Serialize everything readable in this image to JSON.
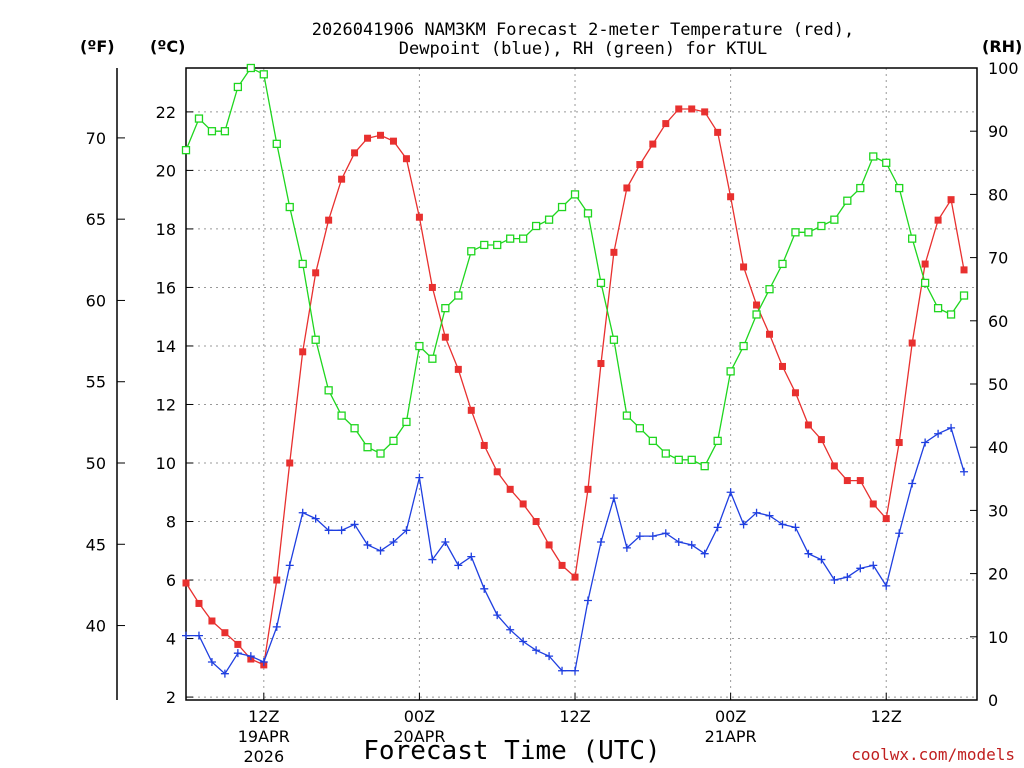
{
  "chart_data": {
    "type": "line",
    "title_line1": "2026041906 NAM3KM Forecast 2-meter Temperature (red),",
    "title_line2": "Dewpoint (blue), RH (green) for KTUL",
    "xlabel": "Forecast Time (UTC)",
    "credit": "coolwx.com/models",
    "units": {
      "fahrenheit": "(ºF)",
      "celsius": "(ºC)",
      "rh": "(RH)"
    },
    "x_range_hours": [
      0,
      61
    ],
    "ylim_c": [
      1.9,
      23.5
    ],
    "ylim_rh": [
      0,
      100
    ],
    "f_ticks": [
      "40",
      "45",
      "50",
      "55",
      "60",
      "65",
      "70"
    ],
    "c_ticks": [
      "2",
      "4",
      "6",
      "8",
      "10",
      "12",
      "14",
      "16",
      "18",
      "20",
      "22"
    ],
    "rh_ticks": [
      "0",
      "10",
      "20",
      "30",
      "40",
      "50",
      "60",
      "70",
      "80",
      "90",
      "100"
    ],
    "x_ticks": [
      {
        "hour": 6,
        "line1": "12Z",
        "line2": "19APR",
        "line3": "2026"
      },
      {
        "hour": 18,
        "line1": "00Z",
        "line2": "20APR",
        "line3": ""
      },
      {
        "hour": 30,
        "line1": "12Z",
        "line2": "",
        "line3": ""
      },
      {
        "hour": 42,
        "line1": "00Z",
        "line2": "21APR",
        "line3": ""
      },
      {
        "hour": 54,
        "line1": "12Z",
        "line2": "",
        "line3": ""
      }
    ],
    "colors": {
      "temperature": "#e8302f",
      "dewpoint": "#1f3fe0",
      "rh": "#1fd61f"
    },
    "series": [
      {
        "name": "Temperature",
        "unit": "C",
        "values": [
          5.9,
          5.2,
          4.6,
          4.2,
          3.8,
          3.3,
          3.1,
          6.0,
          10.0,
          13.8,
          16.5,
          18.3,
          19.7,
          20.6,
          21.1,
          21.2,
          21.0,
          20.4,
          18.4,
          16.0,
          14.3,
          13.2,
          11.8,
          10.6,
          9.7,
          9.1,
          8.6,
          8.0,
          7.2,
          6.5,
          6.1,
          9.1,
          13.4,
          17.2,
          19.4,
          20.2,
          20.9,
          21.6,
          22.1,
          22.1,
          22.0,
          21.3,
          19.1,
          16.7,
          15.4,
          14.4,
          13.3,
          12.4,
          11.3,
          10.8,
          9.9,
          9.4,
          9.4,
          8.6,
          8.1,
          10.7,
          14.1,
          16.8,
          18.3,
          19.0,
          16.6
        ]
      },
      {
        "name": "Dewpoint",
        "unit": "C",
        "values": [
          4.1,
          4.1,
          3.2,
          2.8,
          3.5,
          3.4,
          3.2,
          4.4,
          6.5,
          8.3,
          8.1,
          7.7,
          7.7,
          7.9,
          7.2,
          7.0,
          7.3,
          7.7,
          9.5,
          6.7,
          7.3,
          6.5,
          6.8,
          5.7,
          4.8,
          4.3,
          3.9,
          3.6,
          3.4,
          2.9,
          2.9,
          5.3,
          7.3,
          8.8,
          7.1,
          7.5,
          7.5,
          7.6,
          7.3,
          7.2,
          6.9,
          7.8,
          9.0,
          7.9,
          8.3,
          8.2,
          7.9,
          7.8,
          6.9,
          6.7,
          6.0,
          6.1,
          6.4,
          6.5,
          5.8,
          7.6,
          9.3,
          10.7,
          11.0,
          11.2,
          9.7
        ]
      },
      {
        "name": "RH",
        "unit": "%",
        "values": [
          87,
          92,
          90,
          90,
          97,
          100,
          99,
          88,
          78,
          69,
          57,
          49,
          45,
          43,
          40,
          39,
          41,
          44,
          56,
          54,
          62,
          64,
          71,
          72,
          72,
          73,
          73,
          75,
          76,
          78,
          80,
          77,
          66,
          57,
          45,
          43,
          41,
          39,
          38,
          38,
          37,
          41,
          52,
          56,
          61,
          65,
          69,
          74,
          74,
          75,
          76,
          79,
          81,
          86,
          85,
          81,
          73,
          66,
          62,
          61,
          64
        ]
      }
    ]
  }
}
